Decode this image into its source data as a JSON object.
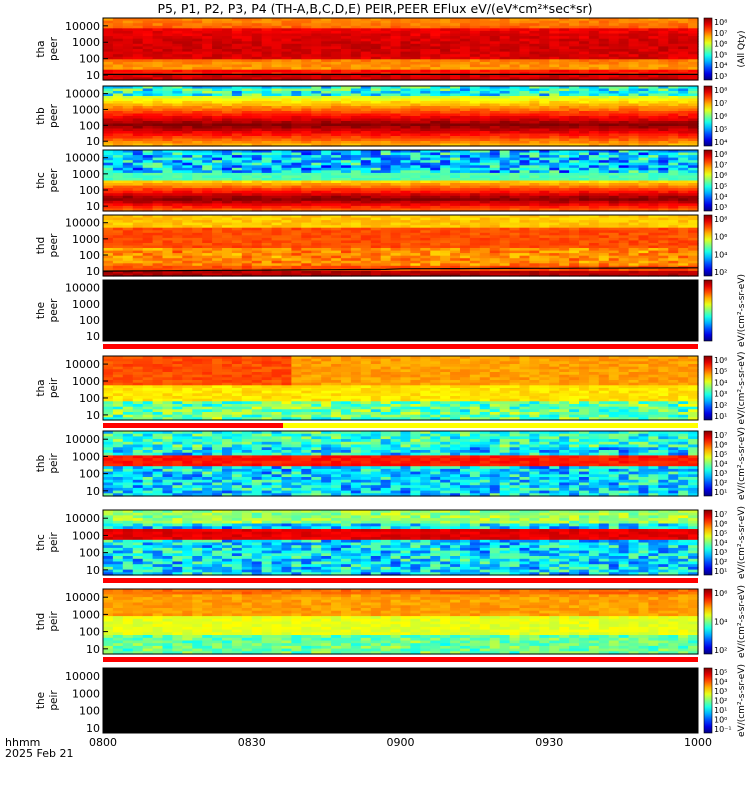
{
  "title": "P5, P1, P2, P3, P4 (TH-A,B,C,D,E) PEIR,PEER EFlux eV/(eV*cm²*sec*sr)",
  "x_header": {
    "line1": "hhmm",
    "line2": "2025 Feb 21"
  },
  "colors": {
    "empty_panel": "#000000",
    "status_red": "#ff0000",
    "status_yellow": "#ffff00"
  },
  "chart_data": {
    "type": "heatmap",
    "title": "P5, P1, P2, P3, P4 (TH-A,B,C,D,E) PEIR,PEER EFlux eV/(eV*cm²*sec*sr)",
    "x_tick_labels": [
      "0800",
      "0830",
      "0900",
      "0930",
      "1000"
    ],
    "x_range": [
      "0800",
      "1000"
    ],
    "y_scale": "log",
    "y_range": [
      5,
      30000
    ],
    "y_tick_labels": [
      "10000",
      "1000",
      "100",
      "10"
    ],
    "panels": [
      {
        "probe": "tha",
        "species": "peer",
        "ylabel": [
          "tha",
          "peer"
        ],
        "spacecraft_potential_line": true,
        "colorbar_label": "(All Qty)",
        "colorbar_ticks": [
          "10⁸",
          "10⁷",
          "10⁶",
          "10⁵",
          "10⁴",
          "10³"
        ],
        "status_bar": "none"
      },
      {
        "probe": "thb",
        "species": "peer",
        "ylabel": [
          "thb",
          "peer"
        ],
        "spacecraft_potential_line": false,
        "colorbar_label": "",
        "colorbar_ticks": [
          "10⁸",
          "10⁷",
          "10⁶",
          "10⁵",
          "10⁴"
        ],
        "status_bar": "none"
      },
      {
        "probe": "thc",
        "species": "peer",
        "ylabel": [
          "thc",
          "peer"
        ],
        "spacecraft_potential_line": false,
        "colorbar_label": "",
        "colorbar_ticks": [
          "10⁸",
          "10⁷",
          "10⁶",
          "10⁵",
          "10⁴",
          "10³"
        ],
        "status_bar": "none"
      },
      {
        "probe": "thd",
        "species": "peer",
        "ylabel": [
          "thd",
          "peer"
        ],
        "spacecraft_potential_line": true,
        "colorbar_label": "",
        "colorbar_ticks": [
          "10⁸",
          "10⁶",
          "10⁴",
          "10²"
        ],
        "status_bar": "none"
      },
      {
        "probe": "the",
        "species": "peer",
        "ylabel": [
          "the",
          "peer"
        ],
        "spacecraft_potential_line": false,
        "colorbar_label": "eV/(cm²-s-sr-eV)",
        "colorbar_ticks": [],
        "status_bar": "red",
        "no_data": true
      },
      {
        "probe": "tha",
        "species": "peir",
        "ylabel": [
          "tha",
          "peir"
        ],
        "spacecraft_potential_line": false,
        "colorbar_label": "eV/(cm²-s-sr-eV)",
        "colorbar_ticks": [
          "10⁶",
          "10⁵",
          "10⁴",
          "10³",
          "10²",
          "10¹"
        ],
        "status_bar": "red-yellow"
      },
      {
        "probe": "thb",
        "species": "peir",
        "ylabel": [
          "thb",
          "peir"
        ],
        "spacecraft_potential_line": false,
        "colorbar_label": "eV/(cm²-s-sr-eV)",
        "colorbar_ticks": [
          "10⁷",
          "10⁶",
          "10⁵",
          "10⁴",
          "10³",
          "10²",
          "10¹"
        ],
        "status_bar": "none"
      },
      {
        "probe": "thc",
        "species": "peir",
        "ylabel": [
          "thc",
          "peir"
        ],
        "spacecraft_potential_line": false,
        "colorbar_label": "eV/(cm²-s-sr-eV)",
        "colorbar_ticks": [
          "10⁷",
          "10⁶",
          "10⁵",
          "10⁴",
          "10³",
          "10²",
          "10¹"
        ],
        "status_bar": "red"
      },
      {
        "probe": "thd",
        "species": "peir",
        "ylabel": [
          "thd",
          "peir"
        ],
        "spacecraft_potential_line": false,
        "colorbar_label": "eV/(cm²-s-sr-eV)",
        "colorbar_ticks": [
          "10⁶",
          "10⁴",
          "10²"
        ],
        "status_bar": "red"
      },
      {
        "probe": "the",
        "species": "peir",
        "ylabel": [
          "the",
          "peir"
        ],
        "spacecraft_potential_line": false,
        "colorbar_label": "eV/(cm²-s-sr-eV)",
        "colorbar_ticks": [
          "10⁵",
          "10⁴",
          "10³",
          "10²",
          "10¹",
          "10⁰",
          "10⁻¹"
        ],
        "status_bar": "none",
        "no_data": true
      }
    ]
  }
}
